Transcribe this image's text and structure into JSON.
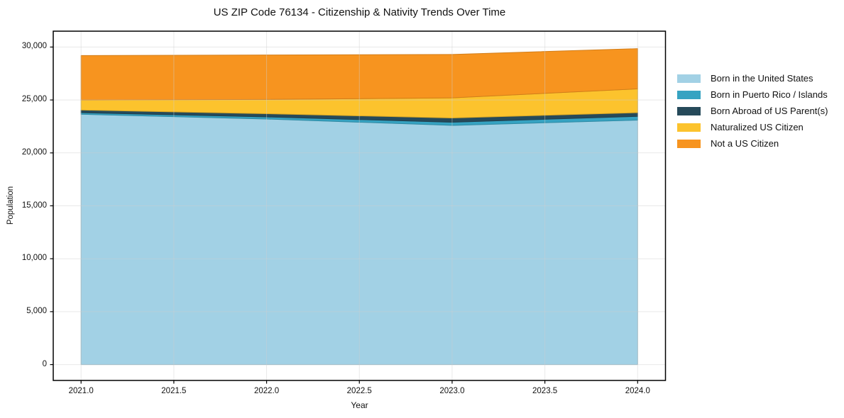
{
  "chart_data": {
    "type": "area",
    "stacked": true,
    "title": "US ZIP Code 76134 - Citizenship & Nativity Trends Over Time",
    "xlabel": "Year",
    "ylabel": "Population",
    "grid": true,
    "legend_position": "right",
    "x": [
      2021,
      2022,
      2023,
      2024
    ],
    "series": [
      {
        "name": "Born in the United States",
        "color": "#a2d1e5",
        "values": [
          23650,
          23200,
          22600,
          23100
        ]
      },
      {
        "name": "Born in Puerto Rico / Islands",
        "color": "#36a3c2",
        "values": [
          150,
          200,
          300,
          350
        ]
      },
      {
        "name": "Born Abroad of US Parent(s)",
        "color": "#264a5a",
        "values": [
          250,
          300,
          400,
          350
        ]
      },
      {
        "name": "Naturalized US Citizen",
        "color": "#fcc32d",
        "values": [
          950,
          1350,
          1900,
          2250
        ]
      },
      {
        "name": "Not a US Citizen",
        "color": "#f7941f",
        "values": [
          4200,
          4200,
          4100,
          3800
        ]
      }
    ],
    "totals": [
      29200,
      29250,
      29300,
      29850
    ],
    "xlim": [
      2020.85,
      2024.15
    ],
    "ylim": [
      -1500,
      31500
    ],
    "x_tick_values": [
      2021.0,
      2021.5,
      2022.0,
      2022.5,
      2023.0,
      2023.5,
      2024.0
    ],
    "x_ticks": [
      "2021.0",
      "2021.5",
      "2022.0",
      "2022.5",
      "2023.0",
      "2023.5",
      "2024.0"
    ],
    "y_tick_values": [
      0,
      5000,
      10000,
      15000,
      20000,
      25000,
      30000
    ],
    "y_ticks": [
      "0",
      "5,000",
      "10,000",
      "15,000",
      "20,000",
      "25,000",
      "30,000"
    ],
    "colors": {
      "spine": "#000000",
      "gridline": "#cfcfcf",
      "text": "#111111",
      "background": "#ffffff"
    }
  }
}
